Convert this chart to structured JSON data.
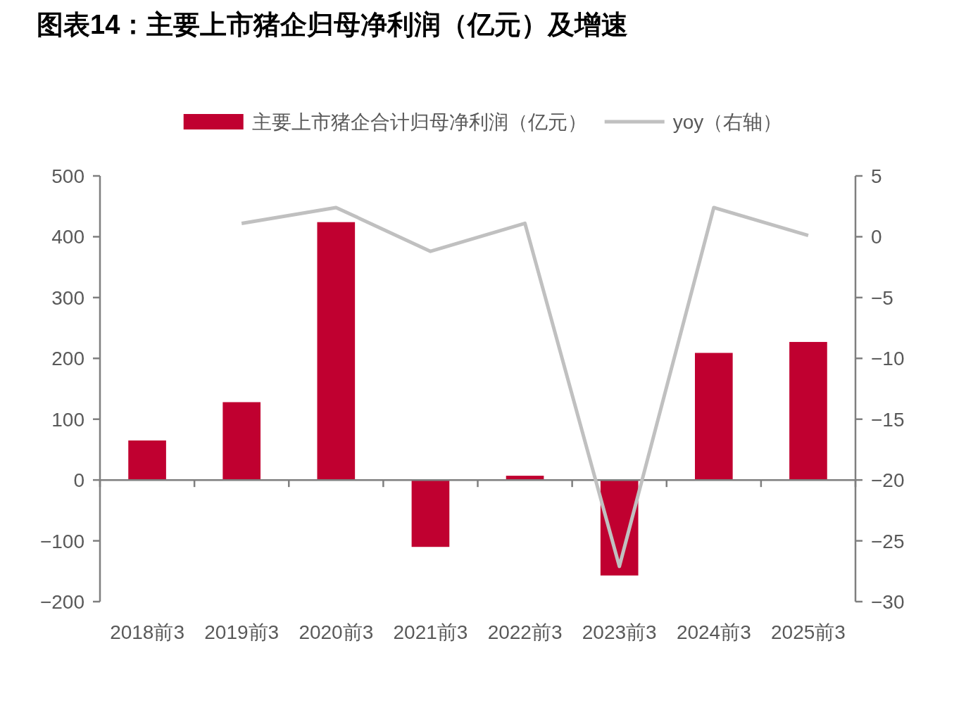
{
  "chart_data": {
    "type": "bar",
    "title": "图表14：主要上市猪企归母净利润（亿元）及增速",
    "categories": [
      "2018前3",
      "2019前3",
      "2020前3",
      "2021前3",
      "2022前3",
      "2023前3",
      "2024前3",
      "2025前3"
    ],
    "series": [
      {
        "name": "主要上市猪企合计归母净利润（亿元）",
        "color": "#c00030",
        "values": [
          65,
          128,
          424,
          -110,
          7,
          -157,
          209,
          227
        ]
      },
      {
        "name": "yoy（右轴）",
        "type": "line",
        "axis": "y2",
        "color": "#c0c0c0",
        "values": [
          null,
          1.1,
          2.4,
          -1.2,
          1.1,
          -27.1,
          2.4,
          0.1
        ]
      }
    ],
    "ylim": [
      -200,
      500
    ],
    "yticks": [
      -200,
      -100,
      0,
      100,
      200,
      300,
      400,
      500
    ],
    "y2lim": [
      -30,
      5
    ],
    "y2ticks": [
      -30,
      -25,
      -20,
      -15,
      -10,
      -5,
      0,
      5
    ],
    "legend": "top",
    "marker": "none"
  }
}
